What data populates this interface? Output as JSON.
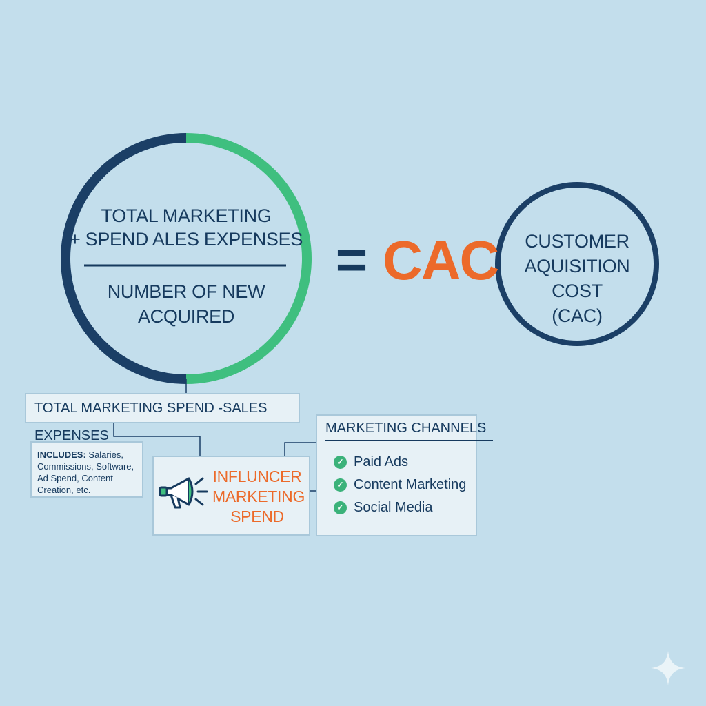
{
  "formula": {
    "numerator_lines": [
      "TOTAL MARKETING",
      "+ SPEND ALES EXPENSES"
    ],
    "denominator_lines": [
      "NUMBER OF NEW",
      "ACQUIRED"
    ],
    "equals": "=",
    "result": "CAC"
  },
  "cac_circle": {
    "lines": [
      "CUSTOMER",
      "AQUISITION COST",
      "(CAC)"
    ]
  },
  "spend_box": {
    "label": "TOTAL MARKETING SPEND -SALES EXPENSES"
  },
  "includes_box": {
    "label": "INCLUDES:",
    "text_lines": [
      " Salaries,",
      "Commissions, Software,",
      "Ad Spend, Content",
      "Creation, etc."
    ]
  },
  "influencer_box": {
    "lines": [
      "INFLUNCER",
      "MARKETING",
      "SPEND"
    ],
    "icon": "megaphone-icon"
  },
  "channels_box": {
    "title": "MARKETING CHANNELS",
    "items": [
      "Paid Ads",
      "Content Marketing",
      "Social Media"
    ],
    "icon": "check-icon"
  },
  "colors": {
    "background": "#c3deec",
    "navy": "#163a5e",
    "green": "#3fbf7f",
    "orange": "#ec6a2a"
  }
}
